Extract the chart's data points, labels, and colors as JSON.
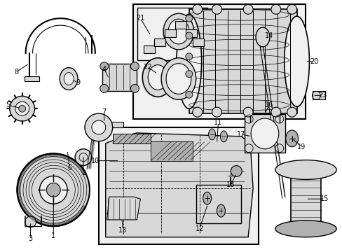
{
  "background_color": "#ffffff",
  "fig_width": 4.89,
  "fig_height": 3.6,
  "dpi": 100,
  "lc": "#000000",
  "tc": "#000000",
  "gray1": "#f0f0f0",
  "gray2": "#d8d8d8",
  "gray3": "#b0b0b0"
}
